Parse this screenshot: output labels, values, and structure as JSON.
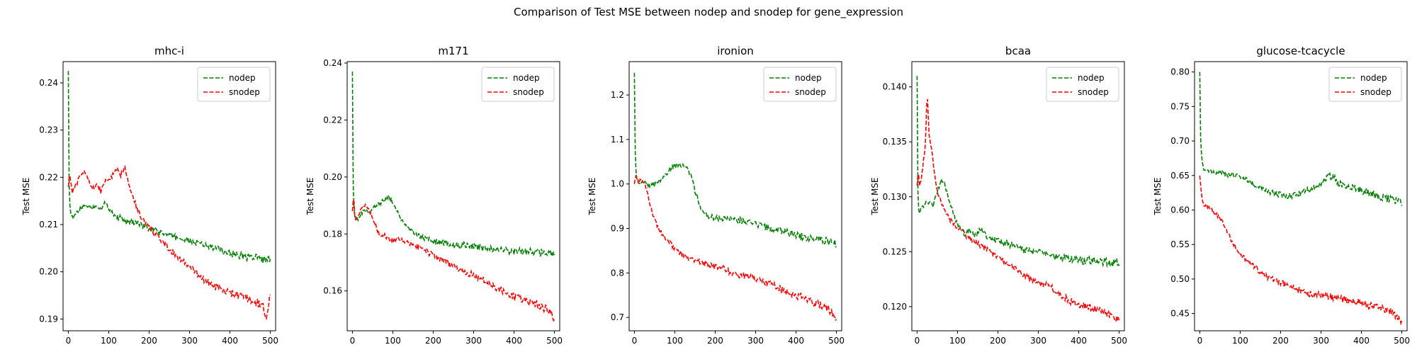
{
  "figure": {
    "suptitle": "Comparison of Test MSE between nodep and snodep for gene_expression"
  },
  "colors": {
    "nodep": "#008000",
    "snodep": "#ff0000"
  },
  "chart_data": [
    {
      "type": "line",
      "title": "mhc-i",
      "xlabel": "",
      "ylabel": "Test MSE",
      "xlim": [
        -13,
        513
      ],
      "ylim": [
        0.1875,
        0.2445
      ],
      "xticks": [
        0,
        100,
        200,
        300,
        400,
        500
      ],
      "yticks": [
        0.19,
        0.2,
        0.21,
        0.22,
        0.23,
        0.24
      ],
      "ytick_labels": [
        "0.19",
        "0.20",
        "0.21",
        "0.22",
        "0.23",
        "0.24"
      ],
      "legend": "top-right",
      "series": [
        {
          "name": "nodep",
          "x": [
            0,
            1,
            3,
            6,
            10,
            15,
            20,
            30,
            40,
            50,
            60,
            70,
            80,
            90,
            100,
            110,
            120,
            130,
            140,
            150,
            160,
            170,
            180,
            190,
            200,
            220,
            240,
            260,
            280,
            300,
            320,
            340,
            360,
            380,
            400,
            420,
            440,
            460,
            480,
            490,
            500
          ],
          "values": [
            0.2425,
            0.222,
            0.215,
            0.2125,
            0.2115,
            0.2115,
            0.2125,
            0.2135,
            0.214,
            0.214,
            0.2135,
            0.214,
            0.2135,
            0.2145,
            0.2135,
            0.2125,
            0.2115,
            0.2115,
            0.2105,
            0.2105,
            0.2105,
            0.2105,
            0.2098,
            0.2095,
            0.209,
            0.2085,
            0.208,
            0.2075,
            0.207,
            0.2065,
            0.206,
            0.2055,
            0.205,
            0.2045,
            0.204,
            0.2035,
            0.2032,
            0.203,
            0.2028,
            0.2022,
            0.2025
          ]
        },
        {
          "name": "snodep",
          "x": [
            0,
            3,
            6,
            10,
            20,
            30,
            40,
            50,
            60,
            70,
            80,
            90,
            100,
            110,
            120,
            130,
            140,
            150,
            160,
            170,
            180,
            190,
            200,
            220,
            240,
            260,
            280,
            300,
            320,
            340,
            360,
            380,
            400,
            420,
            440,
            460,
            480,
            490,
            500
          ],
          "values": [
            0.218,
            0.221,
            0.219,
            0.217,
            0.2185,
            0.2205,
            0.221,
            0.2195,
            0.2175,
            0.2185,
            0.217,
            0.219,
            0.2195,
            0.2205,
            0.2215,
            0.2205,
            0.2225,
            0.2185,
            0.216,
            0.2135,
            0.2115,
            0.2105,
            0.2095,
            0.2075,
            0.2055,
            0.204,
            0.2025,
            0.201,
            0.1995,
            0.198,
            0.197,
            0.196,
            0.1955,
            0.195,
            0.1945,
            0.1935,
            0.193,
            0.1905,
            0.1955
          ]
        }
      ]
    },
    {
      "type": "line",
      "title": "m171",
      "xlabel": "",
      "ylabel": "Test MSE",
      "xlim": [
        -13,
        513
      ],
      "ylim": [
        0.146,
        0.2405
      ],
      "xticks": [
        0,
        100,
        200,
        300,
        400,
        500
      ],
      "yticks": [
        0.16,
        0.18,
        0.2,
        0.22,
        0.24
      ],
      "ytick_labels": [
        "0.16",
        "0.18",
        "0.20",
        "0.22",
        "0.24"
      ],
      "legend": "top-right",
      "series": [
        {
          "name": "nodep",
          "x": [
            0,
            1,
            3,
            6,
            10,
            15,
            20,
            30,
            40,
            50,
            60,
            70,
            80,
            90,
            100,
            110,
            120,
            130,
            140,
            150,
            160,
            170,
            180,
            190,
            200,
            220,
            240,
            260,
            280,
            300,
            320,
            340,
            360,
            380,
            400,
            420,
            440,
            460,
            480,
            500
          ],
          "values": [
            0.237,
            0.203,
            0.19,
            0.186,
            0.185,
            0.1855,
            0.187,
            0.188,
            0.1875,
            0.189,
            0.19,
            0.191,
            0.192,
            0.1925,
            0.1915,
            0.188,
            0.185,
            0.183,
            0.1815,
            0.1805,
            0.1795,
            0.179,
            0.1785,
            0.178,
            0.1775,
            0.177,
            0.1765,
            0.1762,
            0.176,
            0.1755,
            0.175,
            0.1748,
            0.1745,
            0.1742,
            0.174,
            0.1738,
            0.1736,
            0.1735,
            0.1735,
            0.1735
          ]
        },
        {
          "name": "snodep",
          "x": [
            0,
            3,
            6,
            10,
            20,
            30,
            40,
            50,
            60,
            70,
            80,
            90,
            100,
            110,
            120,
            140,
            160,
            180,
            200,
            220,
            240,
            260,
            280,
            300,
            320,
            340,
            360,
            380,
            400,
            420,
            440,
            460,
            480,
            490,
            500
          ],
          "values": [
            0.188,
            0.194,
            0.186,
            0.1855,
            0.188,
            0.19,
            0.1885,
            0.186,
            0.182,
            0.179,
            0.1795,
            0.178,
            0.1775,
            0.178,
            0.178,
            0.177,
            0.1755,
            0.174,
            0.1725,
            0.171,
            0.1695,
            0.168,
            0.1665,
            0.1655,
            0.164,
            0.1625,
            0.161,
            0.1595,
            0.158,
            0.157,
            0.156,
            0.155,
            0.1535,
            0.1525,
            0.15
          ]
        }
      ]
    },
    {
      "type": "line",
      "title": "ironion",
      "xlabel": "",
      "ylabel": "Test MSE",
      "xlim": [
        -13,
        513
      ],
      "ylim": [
        0.67,
        1.275
      ],
      "xticks": [
        0,
        100,
        200,
        300,
        400,
        500
      ],
      "yticks": [
        0.7,
        0.8,
        0.9,
        1.0,
        1.1,
        1.2
      ],
      "ytick_labels": [
        "0.7",
        "0.8",
        "0.9",
        "1.0",
        "1.1",
        "1.2"
      ],
      "legend": "top-right",
      "series": [
        {
          "name": "nodep",
          "x": [
            0,
            1,
            3,
            6,
            10,
            15,
            20,
            30,
            40,
            50,
            60,
            70,
            80,
            90,
            100,
            110,
            120,
            130,
            140,
            150,
            160,
            170,
            180,
            190,
            200,
            220,
            240,
            260,
            280,
            300,
            320,
            340,
            360,
            380,
            400,
            420,
            440,
            460,
            480,
            500
          ],
          "values": [
            1.25,
            1.1,
            1.04,
            1.01,
            1.0,
            1.0,
            1.005,
            1.0,
            0.995,
            1.0,
            1.005,
            1.015,
            1.025,
            1.035,
            1.04,
            1.045,
            1.04,
            1.035,
            1.02,
            0.985,
            0.955,
            0.935,
            0.93,
            0.925,
            0.925,
            0.922,
            0.92,
            0.918,
            0.915,
            0.91,
            0.905,
            0.9,
            0.895,
            0.89,
            0.885,
            0.88,
            0.878,
            0.875,
            0.872,
            0.865
          ]
        },
        {
          "name": "snodep",
          "x": [
            0,
            3,
            6,
            10,
            20,
            30,
            40,
            50,
            60,
            70,
            80,
            90,
            100,
            120,
            140,
            160,
            180,
            200,
            220,
            240,
            260,
            280,
            300,
            320,
            340,
            360,
            380,
            400,
            420,
            440,
            460,
            480,
            490,
            500
          ],
          "values": [
            1.0,
            1.02,
            1.015,
            1.005,
            1.01,
            0.99,
            0.95,
            0.92,
            0.9,
            0.885,
            0.875,
            0.865,
            0.855,
            0.84,
            0.83,
            0.825,
            0.82,
            0.815,
            0.81,
            0.8,
            0.79,
            0.795,
            0.785,
            0.78,
            0.775,
            0.765,
            0.755,
            0.75,
            0.745,
            0.735,
            0.73,
            0.72,
            0.71,
            0.69
          ]
        }
      ]
    },
    {
      "type": "line",
      "title": "bcaa",
      "xlabel": "",
      "ylabel": "Test MSE",
      "xlim": [
        -13,
        513
      ],
      "ylim": [
        0.1178,
        0.1423
      ],
      "xticks": [
        0,
        100,
        200,
        300,
        400,
        500
      ],
      "yticks": [
        0.12,
        0.125,
        0.13,
        0.135,
        0.14
      ],
      "ytick_labels": [
        "0.120",
        "0.125",
        "0.130",
        "0.135",
        "0.140"
      ],
      "legend": "top-right",
      "series": [
        {
          "name": "nodep",
          "x": [
            0,
            1,
            3,
            6,
            10,
            15,
            20,
            30,
            40,
            50,
            60,
            70,
            80,
            90,
            100,
            110,
            120,
            130,
            140,
            150,
            160,
            170,
            180,
            200,
            220,
            240,
            260,
            280,
            300,
            320,
            340,
            360,
            380,
            400,
            420,
            440,
            460,
            480,
            500
          ],
          "values": [
            0.141,
            0.132,
            0.129,
            0.1285,
            0.129,
            0.129,
            0.1295,
            0.1295,
            0.1292,
            0.1305,
            0.1315,
            0.131,
            0.1295,
            0.1285,
            0.1275,
            0.127,
            0.1265,
            0.127,
            0.1265,
            0.1268,
            0.127,
            0.1265,
            0.1262,
            0.126,
            0.1258,
            0.1255,
            0.1252,
            0.125,
            0.125,
            0.1248,
            0.1245,
            0.1244,
            0.1243,
            0.1242,
            0.1242,
            0.1242,
            0.1241,
            0.124,
            0.124
          ]
        },
        {
          "name": "snodep",
          "x": [
            0,
            3,
            6,
            10,
            15,
            20,
            25,
            30,
            35,
            40,
            45,
            50,
            55,
            60,
            70,
            80,
            90,
            100,
            110,
            120,
            140,
            160,
            180,
            200,
            220,
            240,
            260,
            280,
            300,
            320,
            340,
            360,
            380,
            400,
            420,
            440,
            460,
            480,
            490,
            500
          ],
          "values": [
            0.131,
            0.1325,
            0.131,
            0.1315,
            0.133,
            0.1345,
            0.1395,
            0.1355,
            0.1345,
            0.133,
            0.1315,
            0.1305,
            0.13,
            0.1295,
            0.1285,
            0.128,
            0.1275,
            0.1272,
            0.127,
            0.1265,
            0.126,
            0.1255,
            0.125,
            0.1245,
            0.124,
            0.1235,
            0.123,
            0.1225,
            0.1222,
            0.122,
            0.1215,
            0.121,
            0.1205,
            0.1202,
            0.12,
            0.1198,
            0.1195,
            0.1192,
            0.119,
            0.1188
          ]
        }
      ]
    },
    {
      "type": "line",
      "title": "glucose-tcacycle",
      "xlabel": "",
      "ylabel": "Test MSE",
      "xlim": [
        -13,
        513
      ],
      "ylim": [
        0.425,
        0.815
      ],
      "xticks": [
        0,
        100,
        200,
        300,
        400,
        500
      ],
      "yticks": [
        0.45,
        0.5,
        0.55,
        0.6,
        0.65,
        0.7,
        0.75,
        0.8
      ],
      "ytick_labels": [
        "0.45",
        "0.50",
        "0.55",
        "0.60",
        "0.65",
        "0.70",
        "0.75",
        "0.80"
      ],
      "legend": "top-right",
      "series": [
        {
          "name": "nodep",
          "x": [
            0,
            1,
            3,
            6,
            10,
            15,
            20,
            30,
            40,
            50,
            60,
            70,
            80,
            90,
            100,
            120,
            140,
            160,
            180,
            200,
            220,
            240,
            260,
            280,
            300,
            310,
            320,
            330,
            340,
            360,
            380,
            400,
            420,
            440,
            460,
            480,
            500
          ],
          "values": [
            0.8,
            0.72,
            0.69,
            0.67,
            0.66,
            0.66,
            0.658,
            0.655,
            0.652,
            0.655,
            0.652,
            0.65,
            0.652,
            0.65,
            0.648,
            0.642,
            0.635,
            0.63,
            0.625,
            0.622,
            0.62,
            0.622,
            0.628,
            0.632,
            0.64,
            0.645,
            0.65,
            0.648,
            0.64,
            0.635,
            0.632,
            0.628,
            0.625,
            0.62,
            0.618,
            0.615,
            0.612
          ]
        },
        {
          "name": "snodep",
          "x": [
            0,
            3,
            6,
            10,
            20,
            30,
            40,
            50,
            60,
            70,
            80,
            90,
            100,
            110,
            120,
            140,
            160,
            180,
            200,
            220,
            240,
            260,
            280,
            300,
            320,
            340,
            360,
            380,
            400,
            420,
            440,
            460,
            480,
            490,
            500
          ],
          "values": [
            0.65,
            0.63,
            0.615,
            0.608,
            0.604,
            0.6,
            0.595,
            0.588,
            0.578,
            0.565,
            0.555,
            0.545,
            0.535,
            0.53,
            0.525,
            0.515,
            0.505,
            0.5,
            0.495,
            0.49,
            0.485,
            0.48,
            0.478,
            0.477,
            0.475,
            0.472,
            0.47,
            0.468,
            0.465,
            0.462,
            0.46,
            0.455,
            0.45,
            0.445,
            0.435
          ]
        }
      ]
    }
  ]
}
